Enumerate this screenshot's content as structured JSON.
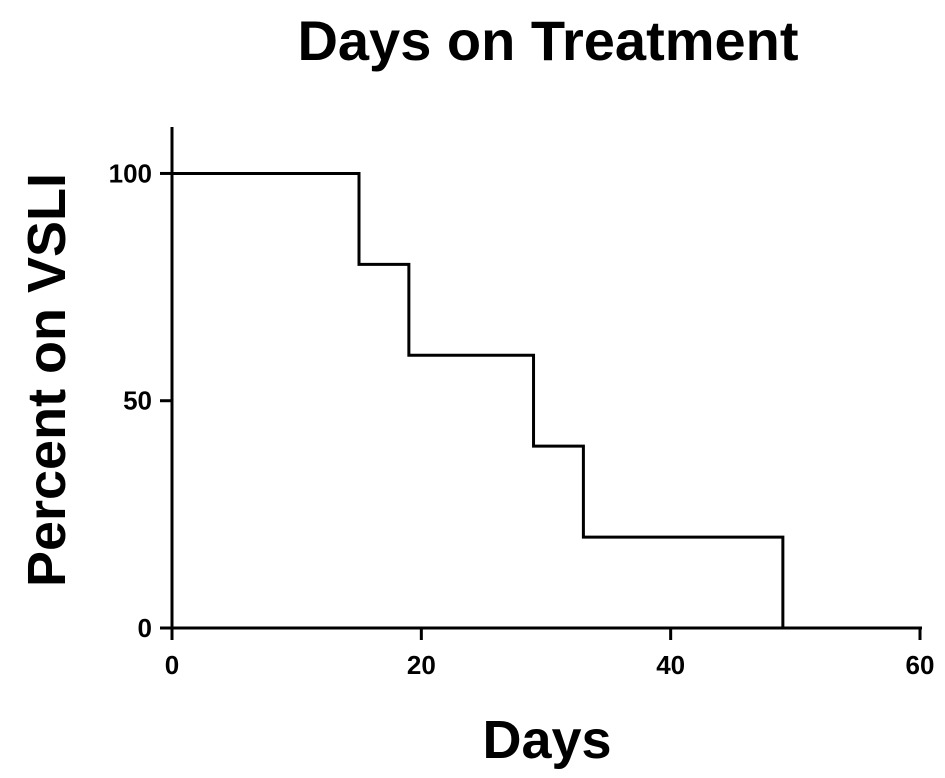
{
  "chart_data": {
    "type": "line",
    "style": "step",
    "title": "Days on Treatment",
    "xlabel": "Days",
    "ylabel": "Percent on VSLI",
    "xlim": [
      0,
      60
    ],
    "ylim": [
      0,
      110
    ],
    "xticks": [
      0,
      20,
      40,
      60
    ],
    "yticks": [
      0,
      50,
      100
    ],
    "xtick_labels": [
      "0",
      "20",
      "40",
      "60"
    ],
    "ytick_labels": [
      "0",
      "50",
      "100"
    ],
    "grid": false,
    "series": [
      {
        "color": "#000000",
        "x": [
          0,
          15,
          15,
          19,
          19,
          29,
          29,
          33,
          33,
          49,
          49
        ],
        "y": [
          100,
          100,
          80,
          80,
          60,
          60,
          40,
          40,
          20,
          20,
          0
        ]
      }
    ]
  }
}
